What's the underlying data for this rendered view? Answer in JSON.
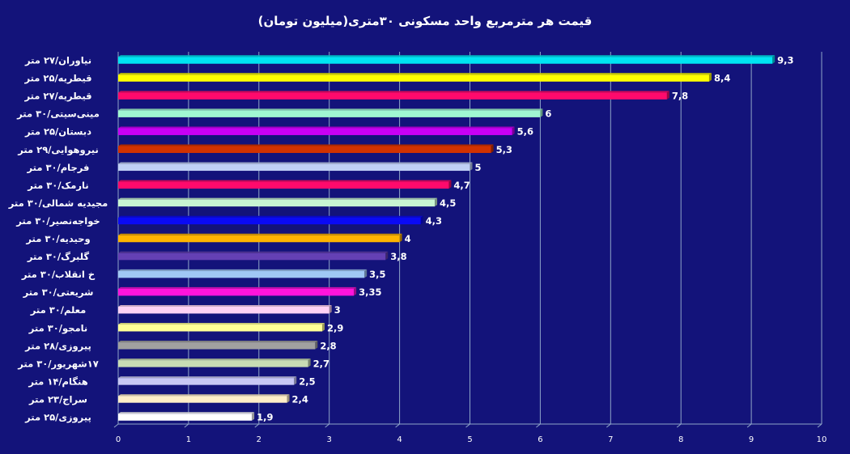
{
  "chart_data": {
    "type": "bar",
    "orientation": "horizontal",
    "title": "قیمت هر مترمربع واحد مسکونی ۳۰متری(میلیون تومان)",
    "categories": [
      "نیاوران/۲۷ متر",
      "قیطریه/۲۵ متر",
      "قیطریه/۲۷ متر",
      "مینی‌سیتی/۳۰ متر",
      "دبستان/۲۵ متر",
      "نیروهوایی/۲۹ متر",
      "فرجام/۳۰ متر",
      "نارمک/۳۰ متر",
      "مجیدیه شمالی/۳۰ متر",
      "خواجه‌نصیر/۳۰ متر",
      "وحیدیه/۳۰ متر",
      "گلبرگ/۳۰ متر",
      "خ انقلاب/۳۰ متر",
      "شریعتی/۳۰ متر",
      "معلم/۳۰ متر",
      "نامجو/۳۰ متر",
      "پیروزی/۲۸ متر",
      "۱۷شهریور/۳۰ متر",
      "هنگام/۱۴ متر",
      "سراج/۲۳ متر",
      "پیروزی/۲۵ متر"
    ],
    "values": [
      9.3,
      8.4,
      7.8,
      6,
      5.6,
      5.3,
      5,
      4.7,
      4.5,
      4.3,
      4,
      3.8,
      3.5,
      3.35,
      3,
      2.9,
      2.8,
      2.7,
      2.5,
      2.4,
      1.9
    ],
    "value_labels": [
      "9,3",
      "8,4",
      "7,8",
      "6",
      "5,6",
      "5,3",
      "5",
      "4,7",
      "4,5",
      "4,3",
      "4",
      "3,8",
      "3,5",
      "3,35",
      "3",
      "2,9",
      "2,8",
      "2,7",
      "2,5",
      "2,4",
      "1,9"
    ],
    "colors": [
      "#00e5f2",
      "#ffff00",
      "#ff0a6c",
      "#a0f7d2",
      "#c800f5",
      "#d23200",
      "#c0d0f5",
      "#ff0a6c",
      "#c8f5d2",
      "#0a0af5",
      "#ffb400",
      "#6440b4",
      "#a0c8f5",
      "#ff14dc",
      "#ffd2f5",
      "#ffff96",
      "#a0a0a0",
      "#c8dcb4",
      "#c8c8f5",
      "#ffeec8",
      "#ffffff"
    ],
    "xlim": [
      0,
      10
    ],
    "xticks": [
      "0",
      "1",
      "2",
      "3",
      "4",
      "5",
      "6",
      "7",
      "8",
      "9",
      "10"
    ],
    "grid": "vertical",
    "background": "#13137a"
  }
}
